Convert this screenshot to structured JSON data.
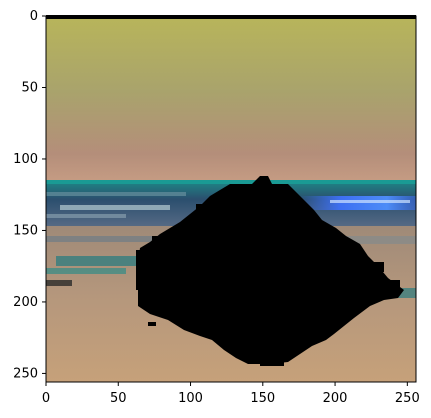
{
  "figure": {
    "type": "image",
    "x_tick_labels": [
      "0",
      "50",
      "100",
      "150",
      "200",
      "250"
    ],
    "y_tick_labels": [
      "0",
      "50",
      "100",
      "150",
      "200",
      "250"
    ],
    "x_ticks": [
      0,
      50,
      100,
      150,
      200,
      250
    ],
    "y_ticks": [
      0,
      50,
      100,
      150,
      200,
      250
    ],
    "xlim": [
      0,
      256
    ],
    "ylim": [
      256,
      0
    ],
    "image_size": [
      256,
      256
    ]
  },
  "colors": {
    "sky_top": "#b8b55a",
    "sky_mid": "#a9a36c",
    "sky_low": "#b48e7a",
    "horizon": "#c79d84",
    "sea_teal": "#1d8a88",
    "sea_dark": "#2b4f6e",
    "wave_light": "#9fb7c2",
    "wave_blue": "#3d6ff2",
    "sand_top": "#9f8a78",
    "sand_mid": "#b5977c",
    "sand_bottom": "#c6a17a",
    "rock": "#000000"
  }
}
